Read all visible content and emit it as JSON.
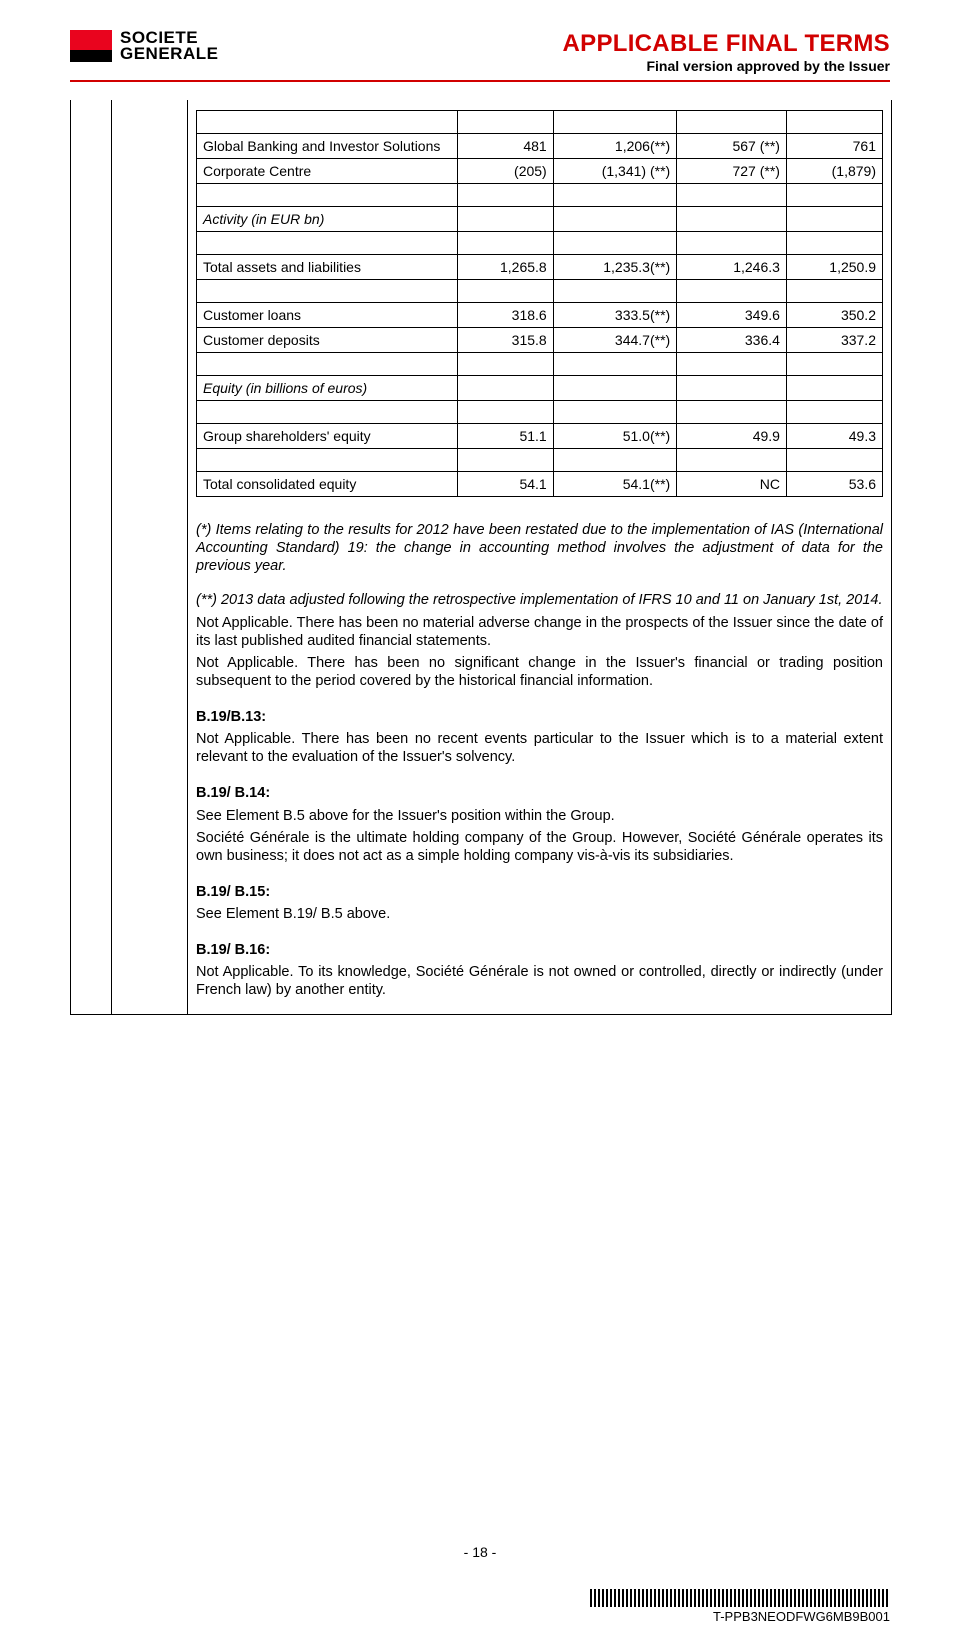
{
  "header": {
    "brand_line1": "SOCIETE",
    "brand_line2": "GENERALE",
    "title": "APPLICABLE FINAL TERMS",
    "subtitle": "Final version approved by the Issuer"
  },
  "table": {
    "rows": [
      {
        "label": "Global Banking and Investor Solutions",
        "c1": "481",
        "c2": "1,206(**)",
        "c3": "567 (**)",
        "c4": "761"
      },
      {
        "label": "Corporate Centre",
        "c1": "(205)",
        "c2": "(1,341) (**)",
        "c3": "727 (**)",
        "c4": "(1,879)"
      },
      {
        "label": "Activity (in EUR bn)",
        "section": true
      },
      {
        "label": "Total assets and liabilities",
        "c1": "1,265.8",
        "c2": "1,235.3(**)",
        "c3": "1,246.3",
        "c4": "1,250.9"
      },
      {
        "label": "Customer loans",
        "c1": "318.6",
        "c2": "333.5(**)",
        "c3": "349.6",
        "c4": "350.2"
      },
      {
        "label": "Customer deposits",
        "c1": "315.8",
        "c2": "344.7(**)",
        "c3": "336.4",
        "c4": "337.2"
      },
      {
        "label": "Equity (in billions of euros)",
        "section": true
      },
      {
        "label": "Group shareholders' equity",
        "c1": "51.1",
        "c2": "51.0(**)",
        "c3": "49.9",
        "c4": "49.3"
      },
      {
        "label": "Total consolidated equity",
        "c1": "54.1",
        "c2": "54.1(**)",
        "c3": "NC",
        "c4": "53.6"
      }
    ]
  },
  "body": {
    "note1": "(*) Items relating to the results for 2012 have been restated due to the implementation of IAS (International Accounting Standard) 19: the change in accounting method involves the adjustment of data for the previous year.",
    "note2": "(**) 2013 data adjusted following the retrospective implementation of IFRS 10 and 11 on January 1st, 2014.",
    "p1": "Not Applicable. There has been no material adverse change in the prospects of the Issuer since the date of its last published audited financial statements.",
    "p2": "Not Applicable. There has been no significant change in the Issuer's financial or trading position subsequent to the period covered by the historical financial information.",
    "s1_label": "B.19/B.13:",
    "s1_text": "Not Applicable. There has been no recent events particular to the Issuer which is to a material extent relevant to the evaluation of the Issuer's solvency.",
    "s2_label": "B.19/ B.14:",
    "s2_text1": "See Element B.5 above for the Issuer's position within the Group.",
    "s2_text2": "Société Générale is the ultimate holding company of the Group. However, Société Générale operates its own business; it does not act as a simple holding company vis-à-vis its subsidiaries.",
    "s3_label": "B.19/ B.15:",
    "s3_text": "See Element B.19/ B.5 above.",
    "s4_label": "B.19/ B.16:",
    "s4_text": "Not Applicable. To its knowledge, Société Générale is not owned or controlled, directly or indirectly (under French law) by another entity."
  },
  "footer": {
    "page": "- 18 -",
    "code": "T-PPB3NEODFWG6MB9B001"
  }
}
